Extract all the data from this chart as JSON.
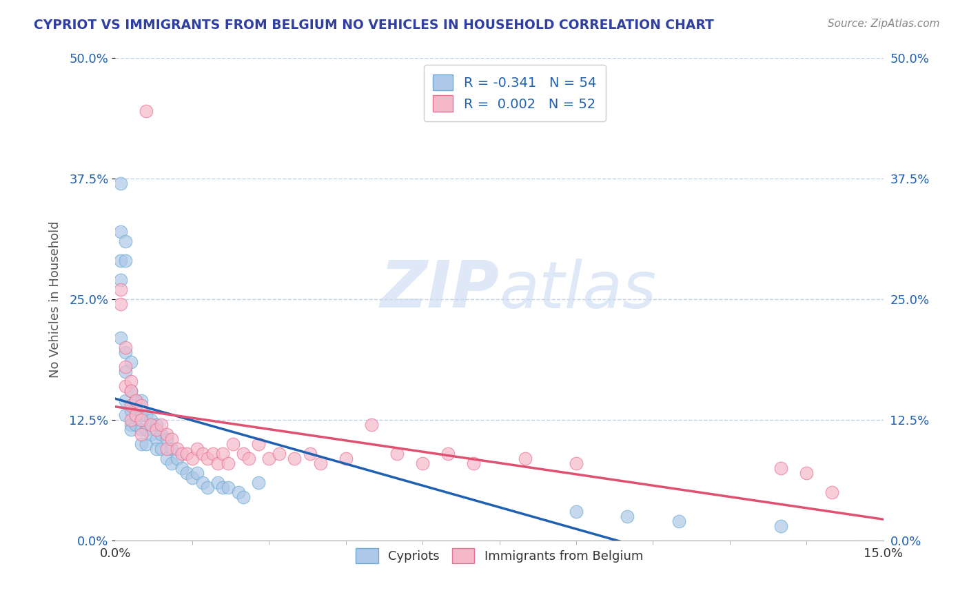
{
  "title": "CYPRIOT VS IMMIGRANTS FROM BELGIUM NO VEHICLES IN HOUSEHOLD CORRELATION CHART",
  "source": "Source: ZipAtlas.com",
  "ylabel": "No Vehicles in Household",
  "xlim": [
    0.0,
    0.15
  ],
  "ylim": [
    0.0,
    0.5
  ],
  "ytick_values": [
    0.0,
    0.125,
    0.25,
    0.375,
    0.5
  ],
  "ytick_labels": [
    "0.0%",
    "12.5%",
    "25.0%",
    "37.5%",
    "50.0%"
  ],
  "xtick_values": [
    0.0,
    0.15
  ],
  "xtick_labels": [
    "0.0%",
    "15.0%"
  ],
  "legend_blue_label": "Cypriots",
  "legend_pink_label": "Immigrants from Belgium",
  "blue_scatter_color": "#adc8e8",
  "blue_edge_color": "#6baad0",
  "pink_scatter_color": "#f5b8cb",
  "pink_edge_color": "#e87090",
  "blue_line_color": "#2060b0",
  "pink_line_color": "#e05070",
  "watermark_color": "#c8daf0",
  "grid_color": "#c0d0e8",
  "title_color": "#3040a0",
  "source_color": "#888888",
  "ylabel_color": "#555555",
  "background": "#ffffff",
  "cypriot_x": [
    0.001,
    0.001,
    0.001,
    0.001,
    0.001,
    0.002,
    0.002,
    0.002,
    0.002,
    0.002,
    0.002,
    0.003,
    0.003,
    0.003,
    0.003,
    0.003,
    0.004,
    0.004,
    0.004,
    0.005,
    0.005,
    0.005,
    0.005,
    0.006,
    0.006,
    0.006,
    0.007,
    0.007,
    0.008,
    0.008,
    0.008,
    0.009,
    0.009,
    0.01,
    0.01,
    0.011,
    0.011,
    0.012,
    0.013,
    0.014,
    0.015,
    0.016,
    0.017,
    0.018,
    0.02,
    0.021,
    0.022,
    0.024,
    0.025,
    0.028,
    0.09,
    0.1,
    0.11,
    0.13
  ],
  "cypriot_y": [
    0.37,
    0.32,
    0.29,
    0.27,
    0.21,
    0.31,
    0.29,
    0.195,
    0.175,
    0.145,
    0.13,
    0.185,
    0.155,
    0.135,
    0.12,
    0.115,
    0.145,
    0.135,
    0.12,
    0.145,
    0.13,
    0.115,
    0.1,
    0.13,
    0.115,
    0.1,
    0.125,
    0.11,
    0.12,
    0.105,
    0.095,
    0.11,
    0.095,
    0.105,
    0.085,
    0.095,
    0.08,
    0.085,
    0.075,
    0.07,
    0.065,
    0.07,
    0.06,
    0.055,
    0.06,
    0.055,
    0.055,
    0.05,
    0.045,
    0.06,
    0.03,
    0.025,
    0.02,
    0.015
  ],
  "belgium_x": [
    0.001,
    0.001,
    0.002,
    0.002,
    0.002,
    0.003,
    0.003,
    0.003,
    0.003,
    0.004,
    0.004,
    0.005,
    0.005,
    0.005,
    0.006,
    0.007,
    0.008,
    0.009,
    0.01,
    0.01,
    0.011,
    0.012,
    0.013,
    0.014,
    0.015,
    0.016,
    0.017,
    0.018,
    0.019,
    0.02,
    0.021,
    0.022,
    0.023,
    0.025,
    0.026,
    0.028,
    0.03,
    0.032,
    0.035,
    0.038,
    0.04,
    0.045,
    0.05,
    0.055,
    0.06,
    0.065,
    0.07,
    0.08,
    0.09,
    0.13,
    0.135,
    0.14
  ],
  "belgium_y": [
    0.26,
    0.245,
    0.2,
    0.18,
    0.16,
    0.165,
    0.155,
    0.14,
    0.125,
    0.145,
    0.13,
    0.14,
    0.125,
    0.11,
    0.445,
    0.12,
    0.115,
    0.12,
    0.11,
    0.095,
    0.105,
    0.095,
    0.09,
    0.09,
    0.085,
    0.095,
    0.09,
    0.085,
    0.09,
    0.08,
    0.09,
    0.08,
    0.1,
    0.09,
    0.085,
    0.1,
    0.085,
    0.09,
    0.085,
    0.09,
    0.08,
    0.085,
    0.12,
    0.09,
    0.08,
    0.09,
    0.08,
    0.085,
    0.08,
    0.075,
    0.07,
    0.05
  ]
}
